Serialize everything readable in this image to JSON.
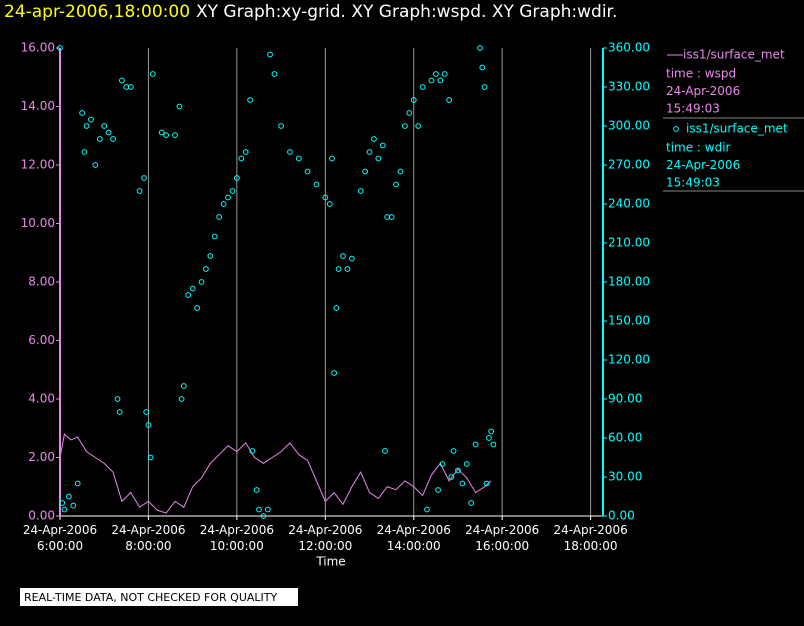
{
  "chart_data": {
    "type": "xy",
    "title": "24-apr-2006,18:00:00",
    "subtitle": "XY Graph:xy-grid.  XY Graph:wspd.  XY Graph:wdir.",
    "x_label": "Time",
    "note": "REAL-TIME DATA, NOT CHECKED FOR QUALITY",
    "grid": true,
    "xlim": [
      6,
      18.28
    ],
    "xticks": [
      {
        "value": 6,
        "label": "24-Apr-2006 6:00:00"
      },
      {
        "value": 8,
        "label": "24-Apr-2006 8:00:00"
      },
      {
        "value": 10,
        "label": "24-Apr-2006 10:00:00"
      },
      {
        "value": 12,
        "label": "24-Apr-2006 12:00:00"
      },
      {
        "value": 14,
        "label": "24-Apr-2006 14:00:00"
      },
      {
        "value": 16,
        "label": "24-Apr-2006 16:00:00"
      },
      {
        "value": 18,
        "label": "24-Apr-2006 18:00:00"
      }
    ],
    "ylim": [
      0,
      16
    ],
    "yticks": [
      {
        "value": 0,
        "label": "0.00"
      },
      {
        "value": 2,
        "label": "2.00"
      },
      {
        "value": 4,
        "label": "4.00"
      },
      {
        "value": 6,
        "label": "6.00"
      },
      {
        "value": 8,
        "label": "8.00"
      },
      {
        "value": 10,
        "label": "10.00"
      },
      {
        "value": 12,
        "label": "12.00"
      },
      {
        "value": 14,
        "label": "14.00"
      },
      {
        "value": 16,
        "label": "16.00"
      }
    ],
    "y2lim": [
      0,
      360
    ],
    "y2ticks": [
      {
        "value": 0,
        "label": "0.00"
      },
      {
        "value": 30,
        "label": "30.00"
      },
      {
        "value": 60,
        "label": "60.00"
      },
      {
        "value": 90,
        "label": "90.00"
      },
      {
        "value": 120,
        "label": "120.00"
      },
      {
        "value": 150,
        "label": "150.00"
      },
      {
        "value": 180,
        "label": "180.00"
      },
      {
        "value": 210,
        "label": "210.00"
      },
      {
        "value": 240,
        "label": "240.00"
      },
      {
        "value": 270,
        "label": "270.00"
      },
      {
        "value": 300,
        "label": "300.00"
      },
      {
        "value": 330,
        "label": "330.00"
      },
      {
        "value": 360,
        "label": "360.00"
      }
    ],
    "series": [
      {
        "name": "iss1/surface_met",
        "legend_lines": [
          "time : wspd",
          "24-Apr-2006",
          "15:49:03"
        ],
        "kind": "line",
        "axis": "y",
        "color": "#e888e8",
        "x": [
          6.0,
          6.1,
          6.25,
          6.4,
          6.6,
          6.8,
          7.0,
          7.2,
          7.4,
          7.6,
          7.8,
          8.0,
          8.2,
          8.4,
          8.6,
          8.8,
          9.0,
          9.2,
          9.4,
          9.6,
          9.8,
          10.0,
          10.2,
          10.4,
          10.6,
          10.8,
          11.0,
          11.2,
          11.4,
          11.6,
          11.8,
          12.0,
          12.2,
          12.4,
          12.6,
          12.8,
          13.0,
          13.2,
          13.4,
          13.6,
          13.8,
          14.0,
          14.2,
          14.4,
          14.6,
          14.8,
          15.0,
          15.2,
          15.4,
          15.6,
          15.75
        ],
        "values": [
          2.0,
          2.8,
          2.6,
          2.7,
          2.2,
          2.0,
          1.8,
          1.5,
          0.5,
          0.8,
          0.3,
          0.5,
          0.2,
          0.1,
          0.5,
          0.3,
          1.0,
          1.3,
          1.8,
          2.1,
          2.4,
          2.2,
          2.5,
          2.0,
          1.8,
          2.0,
          2.2,
          2.5,
          2.1,
          1.9,
          1.2,
          0.5,
          0.8,
          0.4,
          1.0,
          1.5,
          0.8,
          0.6,
          1.0,
          0.9,
          1.2,
          1.0,
          0.7,
          1.4,
          1.8,
          1.2,
          1.6,
          1.3,
          0.8,
          1.0,
          1.2
        ]
      },
      {
        "name": "iss1/surface_met",
        "legend_lines": [
          "time : wdir",
          "24-Apr-2006",
          "15:49:03"
        ],
        "kind": "scatter",
        "axis": "y2",
        "color": "#00ffff",
        "x": [
          6.0,
          6.05,
          6.1,
          6.2,
          6.3,
          6.4,
          6.5,
          6.55,
          6.6,
          6.7,
          6.8,
          6.9,
          7.0,
          7.1,
          7.2,
          7.3,
          7.35,
          7.4,
          7.5,
          7.6,
          7.8,
          7.9,
          7.95,
          8.0,
          8.05,
          8.1,
          8.3,
          8.4,
          8.6,
          8.7,
          8.75,
          8.8,
          8.9,
          9.0,
          9.1,
          9.2,
          9.3,
          9.4,
          9.5,
          9.6,
          9.7,
          9.8,
          9.9,
          10.0,
          10.1,
          10.2,
          10.3,
          10.35,
          10.45,
          10.5,
          10.6,
          10.7,
          10.75,
          10.85,
          11.0,
          11.2,
          11.4,
          11.6,
          11.8,
          12.0,
          12.1,
          12.15,
          12.2,
          12.25,
          12.3,
          12.4,
          12.5,
          12.6,
          12.8,
          12.9,
          13.0,
          13.1,
          13.2,
          13.3,
          13.35,
          13.4,
          13.5,
          13.6,
          13.7,
          13.8,
          13.9,
          14.0,
          14.1,
          14.2,
          14.3,
          14.4,
          14.5,
          14.55,
          14.6,
          14.65,
          14.7,
          14.8,
          14.85,
          14.9,
          15.0,
          15.1,
          15.2,
          15.3,
          15.4,
          15.5,
          15.55,
          15.6,
          15.65,
          15.7,
          15.75,
          15.8
        ],
        "values": [
          360,
          10,
          5,
          15,
          8,
          25,
          310,
          280,
          300,
          305,
          270,
          290,
          300,
          295,
          290,
          90,
          80,
          335,
          330,
          330,
          250,
          260,
          80,
          70,
          45,
          340,
          295,
          293,
          293,
          315,
          90,
          100,
          170,
          175,
          160,
          180,
          190,
          200,
          215,
          230,
          240,
          245,
          250,
          260,
          275,
          280,
          320,
          50,
          20,
          5,
          0,
          5,
          355,
          340,
          300,
          280,
          275,
          265,
          255,
          245,
          240,
          275,
          110,
          160,
          190,
          200,
          190,
          198,
          250,
          265,
          280,
          290,
          275,
          285,
          50,
          230,
          230,
          255,
          265,
          300,
          310,
          320,
          300,
          330,
          5,
          335,
          340,
          20,
          335,
          40,
          340,
          320,
          30,
          50,
          35,
          25,
          40,
          10,
          55,
          360,
          345,
          330,
          25,
          60,
          65,
          55
        ]
      }
    ]
  }
}
